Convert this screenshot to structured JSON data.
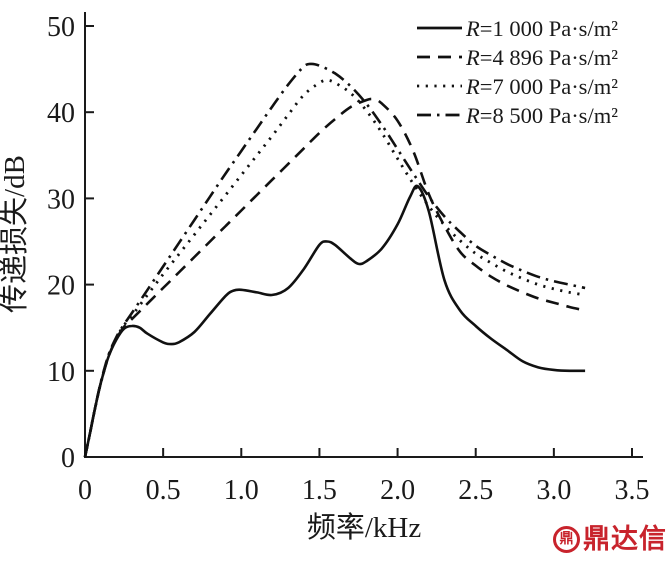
{
  "figure": {
    "background": "#ffffff",
    "axis_color": "#1a1a1a",
    "line_color": "#111111"
  },
  "chart_data": {
    "type": "line",
    "title": "",
    "xlabel": "频率/kHz",
    "ylabel": "传递损失/dB",
    "xlim": [
      0,
      3.5
    ],
    "ylim": [
      0,
      50
    ],
    "grid": false,
    "legend_position": "top-right",
    "x_tick_values": [
      0,
      0.5,
      1.0,
      1.5,
      2.0,
      2.5,
      3.0,
      3.5
    ],
    "x_tick_labels": [
      "0",
      "0.5",
      "1.0",
      "1.5",
      "2.0",
      "2.5",
      "3.0",
      "3.5"
    ],
    "y_tick_values": [
      0,
      10,
      20,
      30,
      40,
      50
    ],
    "y_tick_labels": [
      "0",
      "10",
      "20",
      "30",
      "40",
      "50"
    ],
    "series": [
      {
        "label": "R=1 000 Pa·s/m²",
        "var": "R",
        "rest": "=1 000 Pa·s/m²",
        "line_style": "solid",
        "points": [
          [
            0,
            0
          ],
          [
            0.03,
            2.6
          ],
          [
            0.06,
            5.3
          ],
          [
            0.1,
            8.5
          ],
          [
            0.15,
            11.6
          ],
          [
            0.2,
            13.6
          ],
          [
            0.25,
            14.9
          ],
          [
            0.3,
            15.2
          ],
          [
            0.35,
            15.0
          ],
          [
            0.4,
            14.3
          ],
          [
            0.5,
            13.3
          ],
          [
            0.55,
            13.1
          ],
          [
            0.6,
            13.3
          ],
          [
            0.7,
            14.5
          ],
          [
            0.8,
            16.6
          ],
          [
            0.9,
            18.7
          ],
          [
            0.95,
            19.3
          ],
          [
            1.0,
            19.4
          ],
          [
            1.1,
            19.1
          ],
          [
            1.2,
            18.8
          ],
          [
            1.3,
            19.6
          ],
          [
            1.4,
            21.8
          ],
          [
            1.5,
            24.6
          ],
          [
            1.55,
            25.0
          ],
          [
            1.6,
            24.6
          ],
          [
            1.7,
            23.0
          ],
          [
            1.75,
            22.4
          ],
          [
            1.8,
            22.7
          ],
          [
            1.9,
            24.2
          ],
          [
            2.0,
            27.0
          ],
          [
            2.08,
            30.2
          ],
          [
            2.13,
            31.4
          ],
          [
            2.2,
            28.5
          ],
          [
            2.3,
            20.5
          ],
          [
            2.4,
            17.0
          ],
          [
            2.5,
            15.2
          ],
          [
            2.6,
            13.7
          ],
          [
            2.7,
            12.4
          ],
          [
            2.8,
            11.1
          ],
          [
            2.9,
            10.4
          ],
          [
            3.0,
            10.1
          ],
          [
            3.1,
            10.0
          ],
          [
            3.2,
            10.0
          ]
        ]
      },
      {
        "label": "R=4 896 Pa·s/m²",
        "var": "R",
        "rest": "=4 896 Pa·s/m²",
        "line_style": "dashed",
        "points": [
          [
            0,
            0
          ],
          [
            0.03,
            2.6
          ],
          [
            0.06,
            5.3
          ],
          [
            0.1,
            8.5
          ],
          [
            0.15,
            11.6
          ],
          [
            0.2,
            13.7
          ],
          [
            0.25,
            15.1
          ],
          [
            0.3,
            16.0
          ],
          [
            0.4,
            17.8
          ],
          [
            0.5,
            19.6
          ],
          [
            0.6,
            21.4
          ],
          [
            0.7,
            23.2
          ],
          [
            0.8,
            25.0
          ],
          [
            0.9,
            26.8
          ],
          [
            1.0,
            28.6
          ],
          [
            1.1,
            30.4
          ],
          [
            1.2,
            32.2
          ],
          [
            1.3,
            34.0
          ],
          [
            1.4,
            35.8
          ],
          [
            1.5,
            37.6
          ],
          [
            1.6,
            39.2
          ],
          [
            1.7,
            40.6
          ],
          [
            1.8,
            41.4
          ],
          [
            1.85,
            41.5
          ],
          [
            1.9,
            41.0
          ],
          [
            2.0,
            39.0
          ],
          [
            2.1,
            35.5
          ],
          [
            2.2,
            30.5
          ],
          [
            2.3,
            26.8
          ],
          [
            2.4,
            23.8
          ],
          [
            2.5,
            22.2
          ],
          [
            2.6,
            20.9
          ],
          [
            2.7,
            19.9
          ],
          [
            2.8,
            19.1
          ],
          [
            2.9,
            18.4
          ],
          [
            3.0,
            17.9
          ],
          [
            3.1,
            17.4
          ],
          [
            3.2,
            17.0
          ]
        ]
      },
      {
        "label": "R=7 000 Pa·s/m²",
        "var": "R",
        "rest": "=7 000 Pa·s/m²",
        "line_style": "dotted",
        "points": [
          [
            0,
            0
          ],
          [
            0.03,
            2.6
          ],
          [
            0.06,
            5.3
          ],
          [
            0.1,
            8.5
          ],
          [
            0.15,
            11.7
          ],
          [
            0.2,
            13.8
          ],
          [
            0.25,
            15.3
          ],
          [
            0.3,
            16.4
          ],
          [
            0.4,
            18.8
          ],
          [
            0.5,
            21.2
          ],
          [
            0.6,
            23.5
          ],
          [
            0.7,
            25.8
          ],
          [
            0.8,
            28.1
          ],
          [
            0.9,
            30.4
          ],
          [
            1.0,
            32.7
          ],
          [
            1.1,
            35.0
          ],
          [
            1.2,
            37.3
          ],
          [
            1.3,
            39.7
          ],
          [
            1.4,
            42.0
          ],
          [
            1.5,
            43.4
          ],
          [
            1.55,
            43.7
          ],
          [
            1.6,
            43.4
          ],
          [
            1.7,
            42.2
          ],
          [
            1.8,
            40.2
          ],
          [
            1.9,
            37.6
          ],
          [
            2.0,
            34.6
          ],
          [
            2.1,
            31.7
          ],
          [
            2.2,
            29.1
          ],
          [
            2.3,
            26.9
          ],
          [
            2.4,
            25.1
          ],
          [
            2.5,
            23.6
          ],
          [
            2.6,
            22.5
          ],
          [
            2.7,
            21.5
          ],
          [
            2.8,
            20.7
          ],
          [
            2.9,
            20.0
          ],
          [
            3.0,
            19.5
          ],
          [
            3.1,
            19.1
          ],
          [
            3.2,
            18.8
          ]
        ]
      },
      {
        "label": "R=8 500 Pa·s/m²",
        "var": "R",
        "rest": "=8 500 Pa·s/m²",
        "line_style": "dashdot",
        "points": [
          [
            0,
            0
          ],
          [
            0.03,
            2.6
          ],
          [
            0.06,
            5.3
          ],
          [
            0.1,
            8.6
          ],
          [
            0.15,
            11.8
          ],
          [
            0.2,
            13.9
          ],
          [
            0.25,
            15.4
          ],
          [
            0.3,
            16.7
          ],
          [
            0.4,
            19.4
          ],
          [
            0.5,
            22.1
          ],
          [
            0.6,
            24.8
          ],
          [
            0.7,
            27.5
          ],
          [
            0.8,
            30.2
          ],
          [
            0.9,
            32.9
          ],
          [
            1.0,
            35.5
          ],
          [
            1.1,
            38.1
          ],
          [
            1.2,
            40.7
          ],
          [
            1.3,
            43.2
          ],
          [
            1.4,
            45.3
          ],
          [
            1.45,
            45.6
          ],
          [
            1.5,
            45.4
          ],
          [
            1.6,
            44.5
          ],
          [
            1.7,
            43.0
          ],
          [
            1.8,
            41.0
          ],
          [
            1.9,
            38.5
          ],
          [
            2.0,
            35.7
          ],
          [
            2.1,
            32.9
          ],
          [
            2.2,
            30.2
          ],
          [
            2.3,
            27.9
          ],
          [
            2.4,
            26.1
          ],
          [
            2.5,
            24.5
          ],
          [
            2.6,
            23.4
          ],
          [
            2.7,
            22.4
          ],
          [
            2.8,
            21.6
          ],
          [
            2.9,
            20.9
          ],
          [
            3.0,
            20.4
          ],
          [
            3.1,
            20.0
          ],
          [
            3.2,
            19.6
          ]
        ]
      }
    ]
  },
  "watermark": {
    "text": "鼎达信",
    "logo_glyph": "鼎",
    "color": "#c8232c"
  }
}
